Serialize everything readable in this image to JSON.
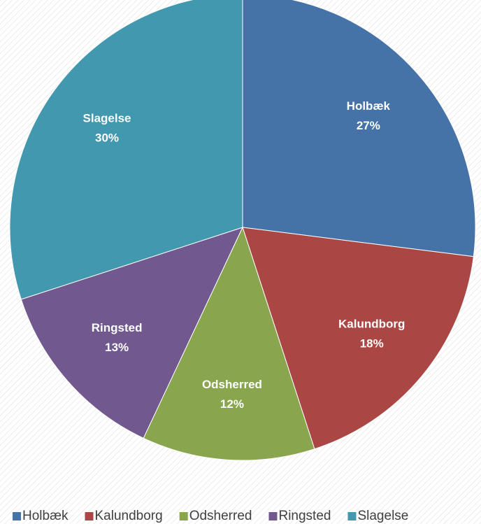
{
  "chart_data": {
    "type": "pie",
    "categories": [
      "Holbæk",
      "Kalundborg",
      "Odsherred",
      "Ringsted",
      "Slagelse"
    ],
    "values": [
      27,
      18,
      12,
      13,
      30
    ],
    "value_labels": [
      "27%",
      "18%",
      "12%",
      "13%",
      "30%"
    ],
    "colors": [
      "#4572a7",
      "#aa4643",
      "#89a54e",
      "#71588f",
      "#4198af"
    ],
    "legend": "bottom"
  }
}
